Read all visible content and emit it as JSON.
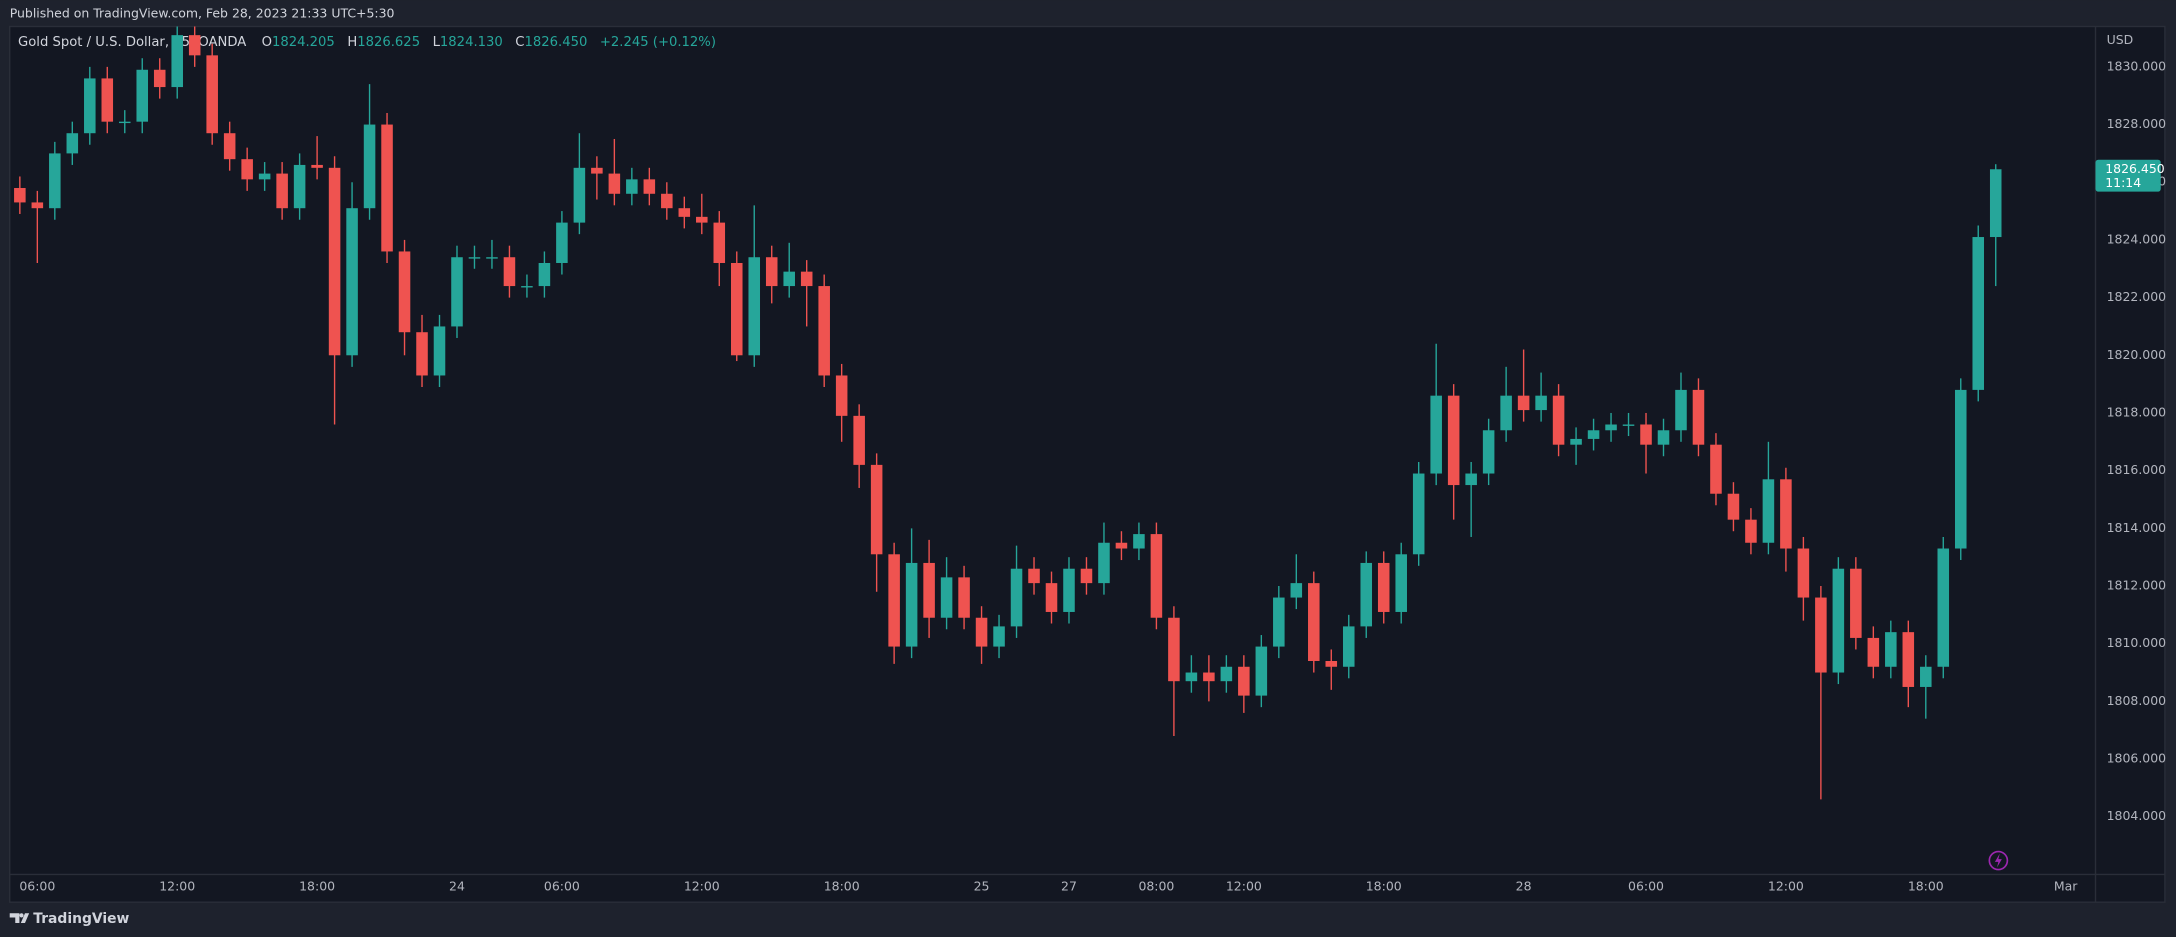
{
  "published": "Published on TradingView.com, Feb 28, 2023 21:33 UTC+5:30",
  "footer": "TradingView",
  "chart_data": {
    "type": "candlestick",
    "legend": {
      "symbol": "Gold Spot / U.S. Dollar, 15, OANDA",
      "o_key": "O",
      "o": "1824.205",
      "h_key": "H",
      "h": "1826.625",
      "l_key": "L",
      "l": "1824.130",
      "c_key": "C",
      "c": "1826.450",
      "change": "+2.245 (+0.12%)"
    },
    "currency": "USD",
    "last_label": {
      "price": "1826.450",
      "countdown": "11:14"
    },
    "up_color": "#26a69a",
    "down_color": "#ef5350",
    "grid": false,
    "ylim": [
      1802,
      1831.4
    ],
    "yticks": [
      {
        "value": 1804,
        "label": "1804.000"
      },
      {
        "value": 1806,
        "label": "1806.000"
      },
      {
        "value": 1808,
        "label": "1808.000"
      },
      {
        "value": 1810,
        "label": "1810.000"
      },
      {
        "value": 1812,
        "label": "1812.000"
      },
      {
        "value": 1814,
        "label": "1814.000"
      },
      {
        "value": 1816,
        "label": "1816.000"
      },
      {
        "value": 1818,
        "label": "1818.000"
      },
      {
        "value": 1820,
        "label": "1820.000"
      },
      {
        "value": 1822,
        "label": "1822.000"
      },
      {
        "value": 1824,
        "label": "1824.000"
      },
      {
        "value": 1826,
        "label": "1826.000"
      },
      {
        "value": 1828,
        "label": "1828.000"
      },
      {
        "value": 1830,
        "label": "1830.000"
      }
    ],
    "categories": [
      null,
      "06:00",
      null,
      null,
      null,
      null,
      null,
      null,
      null,
      "12:00",
      null,
      null,
      null,
      null,
      null,
      null,
      null,
      "18:00",
      null,
      null,
      null,
      null,
      null,
      null,
      null,
      "24",
      null,
      null,
      null,
      null,
      null,
      "06:00",
      null,
      null,
      null,
      null,
      null,
      null,
      null,
      "12:00",
      null,
      null,
      null,
      null,
      null,
      null,
      null,
      "18:00",
      null,
      null,
      null,
      null,
      null,
      null,
      null,
      "25",
      null,
      null,
      null,
      null,
      "27",
      null,
      null,
      null,
      null,
      "08:00",
      null,
      null,
      null,
      null,
      "12:00",
      null,
      null,
      null,
      null,
      null,
      null,
      null,
      "18:00",
      null,
      null,
      null,
      null,
      null,
      null,
      null,
      "28",
      null,
      null,
      null,
      null,
      null,
      null,
      "06:00",
      null,
      null,
      null,
      null,
      null,
      null,
      null,
      "12:00",
      null,
      null,
      null,
      null,
      null,
      null,
      null,
      "18:00",
      null,
      null,
      null,
      null,
      null,
      null,
      null,
      "Mar",
      null
    ],
    "open": [
      1825.8,
      1825.3,
      1825.1,
      1827.0,
      1827.7,
      1829.6,
      1828.1,
      1828.1,
      1829.9,
      1829.3,
      1831.1,
      1830.4,
      1827.7,
      1826.8,
      1826.1,
      1826.3,
      1825.1,
      1826.6,
      1826.5,
      1820.0,
      1825.1,
      1828.0,
      1823.6,
      1820.8,
      1819.3,
      1821.0,
      1823.4,
      1823.4,
      1823.4,
      1822.4,
      1822.4,
      1823.2,
      1824.6,
      1826.5,
      1826.3,
      1825.6,
      1826.1,
      1825.6,
      1825.1,
      1824.8,
      1824.6,
      1823.2,
      1820.0,
      1823.4,
      1822.4,
      1822.9,
      1822.4,
      1819.3,
      1817.9,
      1816.2,
      1813.1,
      1809.9,
      1812.8,
      1810.9,
      1812.3,
      1810.9,
      1809.9,
      1810.6,
      1812.6,
      1812.1,
      1811.1,
      1812.6,
      1812.1,
      1813.5,
      1813.3,
      1813.8,
      1810.9,
      1808.7,
      1809.0,
      1808.7,
      1809.2,
      1808.2,
      1809.9,
      1811.6,
      1812.1,
      1809.4,
      1809.2,
      1810.6,
      1812.8,
      1811.1,
      1813.1,
      1815.9,
      1818.6,
      1815.5,
      1815.9,
      1817.4,
      1818.6,
      1818.1,
      1818.6,
      1816.9,
      1817.1,
      1817.4,
      1817.6,
      1817.6,
      1816.9,
      1817.4,
      1818.8,
      1816.9,
      1815.2,
      1814.3,
      1813.5,
      1815.7,
      1813.3,
      1811.6,
      1809.0,
      1812.6,
      1810.2,
      1809.2,
      1810.4,
      1808.5,
      1809.2,
      1813.3,
      1818.8,
      1824.1,
      null,
      null,
      null,
      null,
      null
    ],
    "high": [
      1826.2,
      1825.7,
      1827.4,
      1828.1,
      1830.0,
      1830.0,
      1828.5,
      1830.3,
      1830.3,
      1831.4,
      1831.4,
      1830.8,
      1828.1,
      1827.2,
      1826.7,
      1826.7,
      1827.0,
      1827.6,
      1826.9,
      1826.0,
      1829.4,
      1828.4,
      1824.0,
      1821.4,
      1821.4,
      1823.8,
      1823.8,
      1824.0,
      1823.8,
      1822.8,
      1823.6,
      1825.0,
      1827.7,
      1826.9,
      1827.5,
      1826.5,
      1826.5,
      1826.0,
      1825.5,
      1825.6,
      1825.0,
      1823.6,
      1825.2,
      1823.8,
      1823.9,
      1823.3,
      1822.8,
      1819.7,
      1818.3,
      1816.6,
      1813.5,
      1814.0,
      1813.6,
      1813.0,
      1812.7,
      1811.3,
      1811.0,
      1813.4,
      1813.0,
      1812.5,
      1813.0,
      1813.0,
      1814.2,
      1813.9,
      1814.2,
      1814.2,
      1811.3,
      1809.6,
      1809.6,
      1809.6,
      1809.6,
      1810.3,
      1812.0,
      1813.1,
      1812.5,
      1809.8,
      1811.0,
      1813.2,
      1813.2,
      1813.5,
      1816.3,
      1820.4,
      1819.0,
      1816.3,
      1817.8,
      1819.6,
      1820.2,
      1819.4,
      1819.0,
      1817.5,
      1817.8,
      1818.0,
      1818.0,
      1818.0,
      1817.8,
      1819.4,
      1819.2,
      1817.3,
      1815.6,
      1814.7,
      1817.0,
      1816.1,
      1813.7,
      1812.0,
      1813.0,
      1813.0,
      1810.6,
      1810.8,
      1810.8,
      1809.6,
      1813.7,
      1819.2,
      1824.5,
      1826.625,
      null,
      null,
      null,
      null,
      null
    ],
    "low": [
      1824.9,
      1823.2,
      1824.7,
      1826.6,
      1827.3,
      1827.7,
      1827.7,
      1827.7,
      1828.9,
      1828.9,
      1830.0,
      1827.3,
      1826.4,
      1825.7,
      1825.7,
      1824.7,
      1824.7,
      1826.1,
      1817.6,
      1819.6,
      1824.7,
      1823.2,
      1820.0,
      1818.9,
      1818.9,
      1820.6,
      1823.0,
      1823.0,
      1822.0,
      1822.0,
      1822.0,
      1822.8,
      1824.2,
      1825.4,
      1825.2,
      1825.2,
      1825.2,
      1824.7,
      1824.4,
      1824.2,
      1822.4,
      1819.8,
      1819.6,
      1821.8,
      1822.0,
      1821.0,
      1818.9,
      1817.0,
      1815.4,
      1811.8,
      1809.3,
      1809.5,
      1810.2,
      1810.5,
      1810.5,
      1809.3,
      1809.5,
      1810.2,
      1811.7,
      1810.7,
      1810.7,
      1811.7,
      1811.7,
      1812.9,
      1812.9,
      1810.5,
      1806.8,
      1808.3,
      1808.0,
      1808.3,
      1807.6,
      1807.8,
      1809.5,
      1811.2,
      1809.0,
      1808.4,
      1808.8,
      1810.2,
      1810.7,
      1810.7,
      1812.7,
      1815.5,
      1814.3,
      1813.7,
      1815.5,
      1817.0,
      1817.7,
      1817.7,
      1816.5,
      1816.2,
      1816.7,
      1817.0,
      1817.2,
      1815.9,
      1816.5,
      1817.0,
      1816.5,
      1814.8,
      1813.9,
      1813.1,
      1813.1,
      1812.5,
      1810.8,
      1804.6,
      1808.6,
      1809.8,
      1808.8,
      1808.8,
      1807.8,
      1807.4,
      1808.8,
      1812.9,
      1818.4,
      1822.4,
      null,
      null,
      null,
      null,
      null
    ],
    "close": [
      1825.3,
      1825.1,
      1827.0,
      1827.7,
      1829.6,
      1828.1,
      1828.1,
      1829.9,
      1829.3,
      1831.1,
      1830.4,
      1827.7,
      1826.8,
      1826.1,
      1826.3,
      1825.1,
      1826.6,
      1826.5,
      1820.0,
      1825.1,
      1828.0,
      1823.6,
      1820.8,
      1819.3,
      1821.0,
      1823.4,
      1823.4,
      1823.4,
      1822.4,
      1822.4,
      1823.2,
      1824.6,
      1826.5,
      1826.3,
      1825.6,
      1826.1,
      1825.6,
      1825.1,
      1824.8,
      1824.6,
      1823.2,
      1820.0,
      1823.4,
      1822.4,
      1822.9,
      1822.4,
      1819.3,
      1817.9,
      1816.2,
      1813.1,
      1809.9,
      1812.8,
      1810.9,
      1812.3,
      1810.9,
      1809.9,
      1810.6,
      1812.6,
      1812.1,
      1811.1,
      1812.6,
      1812.1,
      1813.5,
      1813.3,
      1813.8,
      1810.9,
      1808.7,
      1809.0,
      1808.7,
      1809.2,
      1808.2,
      1809.9,
      1811.6,
      1812.1,
      1809.4,
      1809.2,
      1810.6,
      1812.8,
      1811.1,
      1813.1,
      1815.9,
      1818.6,
      1815.5,
      1815.9,
      1817.4,
      1818.6,
      1818.1,
      1818.6,
      1816.9,
      1817.1,
      1817.4,
      1817.6,
      1817.6,
      1816.9,
      1817.4,
      1818.8,
      1816.9,
      1815.2,
      1814.3,
      1813.5,
      1815.7,
      1813.3,
      1811.6,
      1809.0,
      1812.6,
      1810.2,
      1809.2,
      1810.4,
      1808.5,
      1809.2,
      1813.3,
      1818.8,
      1824.1,
      1826.45,
      null,
      null,
      null,
      null,
      null
    ]
  }
}
